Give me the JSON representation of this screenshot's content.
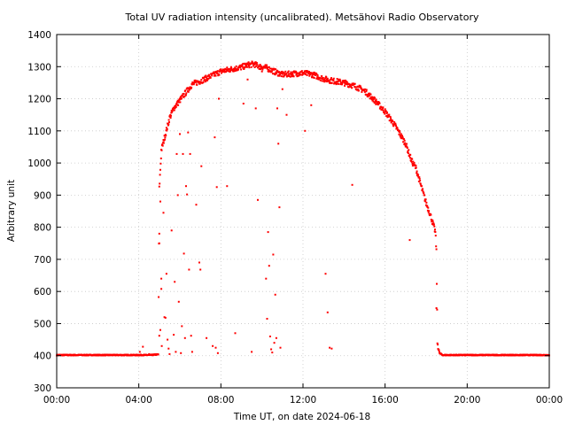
{
  "chart_data": {
    "type": "scatter",
    "title": "Total UV radiation intensity (uncalibrated). Metsähovi Radio Observatory",
    "xlabel": "Time UT, on date 2024-06-18",
    "ylabel": "Arbitrary unit",
    "xlim": [
      0,
      24
    ],
    "ylim": [
      300,
      1400
    ],
    "x_ticks": [
      0,
      4,
      8,
      12,
      16,
      20,
      24
    ],
    "x_tick_labels": [
      "00:00",
      "04:00",
      "08:00",
      "12:00",
      "16:00",
      "20:00",
      "00:00"
    ],
    "y_ticks": [
      300,
      400,
      500,
      600,
      700,
      800,
      900,
      1000,
      1100,
      1200,
      1300,
      1400
    ],
    "y_tick_labels": [
      "300",
      "400",
      "500",
      "600",
      "700",
      "800",
      "900",
      "1000",
      "1100",
      "1200",
      "1300",
      "1400"
    ],
    "grid": true,
    "marker_color": "#ff0000",
    "series": [
      {
        "envelope": [
          [
            0.0,
            402
          ],
          [
            4.0,
            402
          ],
          [
            4.6,
            402
          ],
          [
            4.95,
            404
          ],
          [
            5.0,
            920
          ],
          [
            5.1,
            1040
          ],
          [
            5.2,
            1065
          ],
          [
            5.5,
            1140
          ],
          [
            5.7,
            1170
          ],
          [
            6.0,
            1195
          ],
          [
            6.3,
            1220
          ],
          [
            6.6,
            1245
          ],
          [
            7.0,
            1255
          ],
          [
            7.5,
            1270
          ],
          [
            8.0,
            1285
          ],
          [
            8.5,
            1292
          ],
          [
            9.0,
            1298
          ],
          [
            9.3,
            1305
          ],
          [
            9.6,
            1308
          ],
          [
            9.9,
            1300
          ],
          [
            10.2,
            1297
          ],
          [
            10.6,
            1285
          ],
          [
            11.0,
            1275
          ],
          [
            11.5,
            1278
          ],
          [
            12.0,
            1280
          ],
          [
            12.5,
            1275
          ],
          [
            13.0,
            1262
          ],
          [
            13.5,
            1255
          ],
          [
            14.0,
            1250
          ],
          [
            14.5,
            1240
          ],
          [
            15.0,
            1225
          ],
          [
            15.5,
            1195
          ],
          [
            16.0,
            1160
          ],
          [
            16.5,
            1115
          ],
          [
            17.0,
            1060
          ],
          [
            17.3,
            1005
          ],
          [
            17.5,
            985
          ],
          [
            17.7,
            940
          ],
          [
            18.0,
            875
          ],
          [
            18.2,
            840
          ],
          [
            18.45,
            785
          ],
          [
            18.5,
            725
          ],
          [
            18.55,
            440
          ],
          [
            18.65,
            408
          ],
          [
            18.8,
            402
          ],
          [
            24.0,
            402
          ]
        ],
        "outliers": [
          [
            4.05,
            412
          ],
          [
            4.2,
            428
          ],
          [
            4.5,
            405
          ],
          [
            4.8,
            404
          ],
          [
            5.0,
            780
          ],
          [
            5.0,
            750
          ],
          [
            5.05,
            880
          ],
          [
            5.1,
            640
          ],
          [
            5.1,
            608
          ],
          [
            5.05,
            480
          ],
          [
            5.0,
            462
          ],
          [
            5.12,
            430
          ],
          [
            5.2,
            845
          ],
          [
            5.25,
            520
          ],
          [
            5.3,
            518
          ],
          [
            5.35,
            655
          ],
          [
            5.4,
            450
          ],
          [
            5.45,
            422
          ],
          [
            5.5,
            405
          ],
          [
            5.6,
            790
          ],
          [
            5.7,
            465
          ],
          [
            5.75,
            630
          ],
          [
            5.8,
            412
          ],
          [
            5.85,
            1028
          ],
          [
            5.9,
            900
          ],
          [
            5.95,
            568
          ],
          [
            6.0,
            1090
          ],
          [
            6.05,
            408
          ],
          [
            6.1,
            492
          ],
          [
            6.15,
            1028
          ],
          [
            6.2,
            718
          ],
          [
            6.25,
            455
          ],
          [
            6.3,
            928
          ],
          [
            6.35,
            902
          ],
          [
            6.4,
            1095
          ],
          [
            6.45,
            668
          ],
          [
            6.5,
            1028
          ],
          [
            6.55,
            462
          ],
          [
            6.6,
            412
          ],
          [
            6.8,
            870
          ],
          [
            6.95,
            690
          ],
          [
            7.0,
            668
          ],
          [
            7.05,
            990
          ],
          [
            7.3,
            455
          ],
          [
            7.6,
            430
          ],
          [
            7.7,
            1080
          ],
          [
            7.75,
            425
          ],
          [
            7.8,
            925
          ],
          [
            7.85,
            408
          ],
          [
            7.9,
            1200
          ],
          [
            8.3,
            928
          ],
          [
            8.7,
            470
          ],
          [
            9.1,
            1185
          ],
          [
            9.3,
            1260
          ],
          [
            9.5,
            412
          ],
          [
            9.7,
            1170
          ],
          [
            9.8,
            885
          ],
          [
            10.0,
            1285
          ],
          [
            10.2,
            640
          ],
          [
            10.25,
            515
          ],
          [
            10.3,
            785
          ],
          [
            10.35,
            680
          ],
          [
            10.4,
            460
          ],
          [
            10.45,
            420
          ],
          [
            10.5,
            410
          ],
          [
            10.55,
            715
          ],
          [
            10.6,
            440
          ],
          [
            10.65,
            590
          ],
          [
            10.7,
            455
          ],
          [
            10.75,
            1170
          ],
          [
            10.8,
            1060
          ],
          [
            10.85,
            862
          ],
          [
            10.9,
            425
          ],
          [
            11.0,
            1230
          ],
          [
            11.2,
            1150
          ],
          [
            12.1,
            1100
          ],
          [
            12.4,
            1180
          ],
          [
            13.1,
            655
          ],
          [
            13.2,
            535
          ],
          [
            13.3,
            425
          ],
          [
            13.4,
            422
          ],
          [
            14.4,
            932
          ],
          [
            17.2,
            760
          ],
          [
            18.5,
            548
          ],
          [
            20.7,
            403
          ],
          [
            22.2,
            403
          ]
        ]
      }
    ]
  }
}
